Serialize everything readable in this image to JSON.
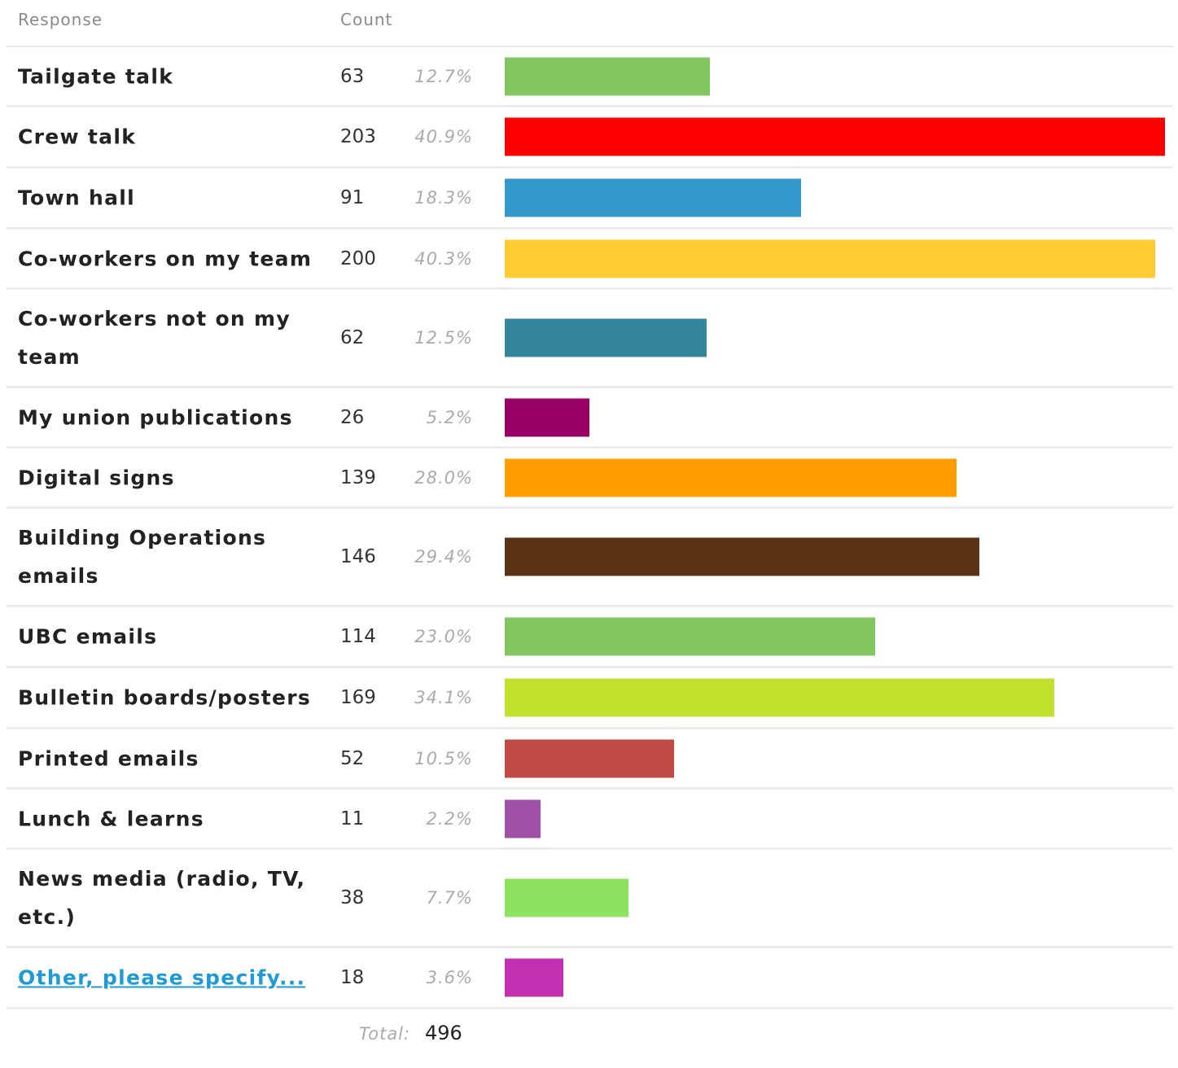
{
  "header": {
    "response_label": "Response",
    "count_label": "Count"
  },
  "total": {
    "label": "Total:",
    "value": "496"
  },
  "chart_data": {
    "type": "bar",
    "orientation": "horizontal",
    "categories": [
      "Tailgate talk",
      "Crew talk",
      "Town hall",
      "Co-workers on my team",
      "Co-workers not on my team",
      "My union publications",
      "Digital signs",
      "Building Operations emails",
      "UBC emails",
      "Bulletin boards/posters",
      "Printed emails",
      "Lunch & learns",
      "News media (radio, TV, etc.)",
      "Other, please specify..."
    ],
    "counts": [
      "63",
      "203",
      "91",
      "200",
      "62",
      "26",
      "139",
      "146",
      "114",
      "169",
      "52",
      "11",
      "38",
      "18"
    ],
    "percents": [
      "12.7%",
      "40.9%",
      "18.3%",
      "40.3%",
      "12.5%",
      "5.2%",
      "28.0%",
      "29.4%",
      "23.0%",
      "34.1%",
      "10.5%",
      "2.2%",
      "7.7%",
      "3.6%"
    ],
    "values": [
      63,
      203,
      91,
      200,
      62,
      26,
      139,
      146,
      114,
      169,
      52,
      11,
      38,
      18
    ],
    "colors": [
      "#82c65f",
      "#ff0000",
      "#3498cd",
      "#ffcb33",
      "#33869b",
      "#990066",
      "#ff9c00",
      "#5c3214",
      "#82c65f",
      "#c0e22c",
      "#c04b45",
      "#a04fa9",
      "#8de35f",
      "#c030b0"
    ],
    "links": [
      false,
      false,
      false,
      false,
      false,
      false,
      false,
      false,
      false,
      false,
      false,
      false,
      false,
      true
    ],
    "xlim": [
      0,
      203
    ]
  }
}
